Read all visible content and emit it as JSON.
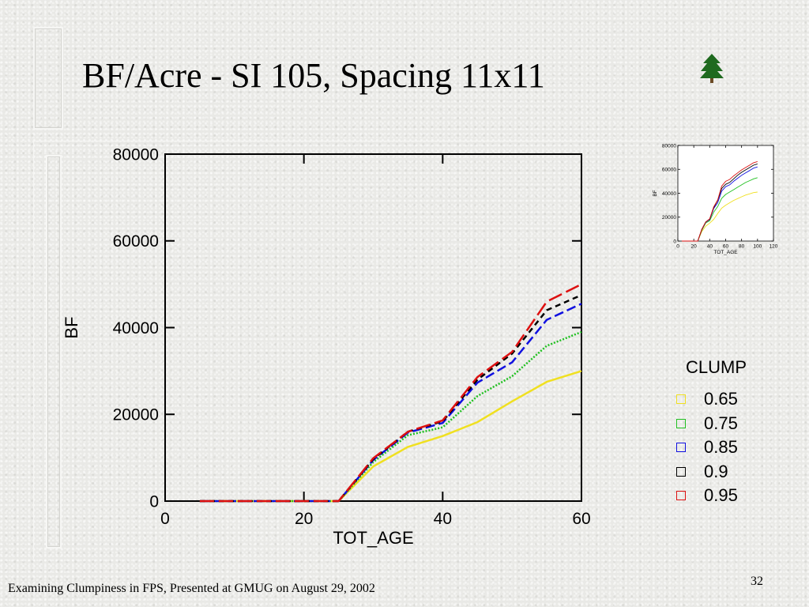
{
  "slide": {
    "title": "BF/Acre - SI 105, Spacing 11x11",
    "footer": "Examining Clumpiness in FPS, Presented at GMUG on August 29, 2002",
    "page_number": "32",
    "icon": "tree-icon"
  },
  "chart_data": [
    {
      "type": "line",
      "title": "",
      "xlabel": "TOT_AGE",
      "ylabel": "BF",
      "xlim": [
        0,
        60
      ],
      "ylim": [
        0,
        80000
      ],
      "xticks": [
        0,
        20,
        40,
        60
      ],
      "yticks": [
        0,
        20000,
        40000,
        60000,
        80000
      ],
      "x_tick_labels": [
        "0",
        "20",
        "40",
        "60"
      ],
      "y_tick_labels": [
        "0",
        "20000",
        "40000",
        "60000",
        "80000"
      ],
      "legend_title": "CLUMP",
      "legend_position": "right",
      "grid": false,
      "x": [
        5,
        10,
        15,
        20,
        25,
        30,
        35,
        40,
        45,
        50,
        55,
        60
      ],
      "series": [
        {
          "name": "0.65",
          "color": "#f0e020",
          "dash": "solid",
          "values": [
            0,
            0,
            0,
            0,
            0,
            8000,
            12500,
            15000,
            18200,
            23000,
            27500,
            30000
          ]
        },
        {
          "name": "0.75",
          "color": "#20c020",
          "dash": "dotted",
          "values": [
            0,
            0,
            0,
            0,
            0,
            9000,
            15200,
            17000,
            24200,
            28800,
            35800,
            39000
          ]
        },
        {
          "name": "0.85",
          "color": "#1010e0",
          "dash": "dashed",
          "values": [
            0,
            0,
            0,
            0,
            0,
            9500,
            15800,
            18000,
            27300,
            32000,
            41800,
            45500
          ]
        },
        {
          "name": "0.9",
          "color": "#000000",
          "dash": "dashed-short",
          "values": [
            0,
            0,
            0,
            0,
            0,
            9700,
            16000,
            18400,
            28000,
            34000,
            44000,
            47500
          ]
        },
        {
          "name": "0.95",
          "color": "#dd1010",
          "dash": "dashed-long",
          "values": [
            0,
            0,
            0,
            0,
            0,
            9900,
            16000,
            18600,
            28600,
            34400,
            46000,
            50000
          ]
        }
      ]
    },
    {
      "type": "line",
      "title": "",
      "xlabel": "TOT_AGE",
      "ylabel": "BF",
      "xlim": [
        0,
        120
      ],
      "ylim": [
        0,
        80000
      ],
      "xticks": [
        0,
        20,
        40,
        60,
        80,
        100,
        120
      ],
      "yticks": [
        0,
        20000,
        40000,
        60000,
        80000
      ],
      "x_tick_labels": [
        "0",
        "20",
        "40",
        "60",
        "80",
        "100",
        "120"
      ],
      "y_tick_labels": [
        "0",
        "20000",
        "40000",
        "60000",
        "80000"
      ],
      "grid": false,
      "x": [
        5,
        10,
        15,
        20,
        25,
        30,
        35,
        40,
        45,
        50,
        55,
        60,
        65,
        70,
        75,
        80,
        85,
        90,
        95,
        100
      ],
      "series": [
        {
          "color": "#f0e020",
          "values": [
            0,
            0,
            0,
            0,
            0,
            8000,
            12500,
            15000,
            18200,
            23000,
            27500,
            30000,
            32000,
            34000,
            35500,
            37000,
            38500,
            39500,
            40500,
            41000
          ]
        },
        {
          "color": "#20c020",
          "values": [
            0,
            0,
            0,
            0,
            0,
            9000,
            15200,
            17000,
            24200,
            28800,
            35800,
            39000,
            41000,
            43000,
            45000,
            47000,
            49000,
            50500,
            52000,
            53000
          ]
        },
        {
          "color": "#1010e0",
          "values": [
            0,
            0,
            0,
            0,
            0,
            9500,
            15800,
            18000,
            27300,
            32000,
            41800,
            45500,
            47000,
            50000,
            52500,
            55000,
            57000,
            59000,
            61000,
            62000
          ]
        },
        {
          "color": "#000000",
          "values": [
            0,
            0,
            0,
            0,
            0,
            9700,
            16000,
            18400,
            28000,
            34000,
            44000,
            47500,
            49000,
            52000,
            55000,
            57500,
            59500,
            61500,
            63500,
            64500
          ]
        },
        {
          "color": "#dd1010",
          "values": [
            0,
            0,
            0,
            0,
            0,
            9900,
            16000,
            18600,
            28600,
            34400,
            46000,
            50000,
            51500,
            54500,
            57000,
            59500,
            61500,
            63500,
            65500,
            66500
          ]
        }
      ]
    }
  ]
}
